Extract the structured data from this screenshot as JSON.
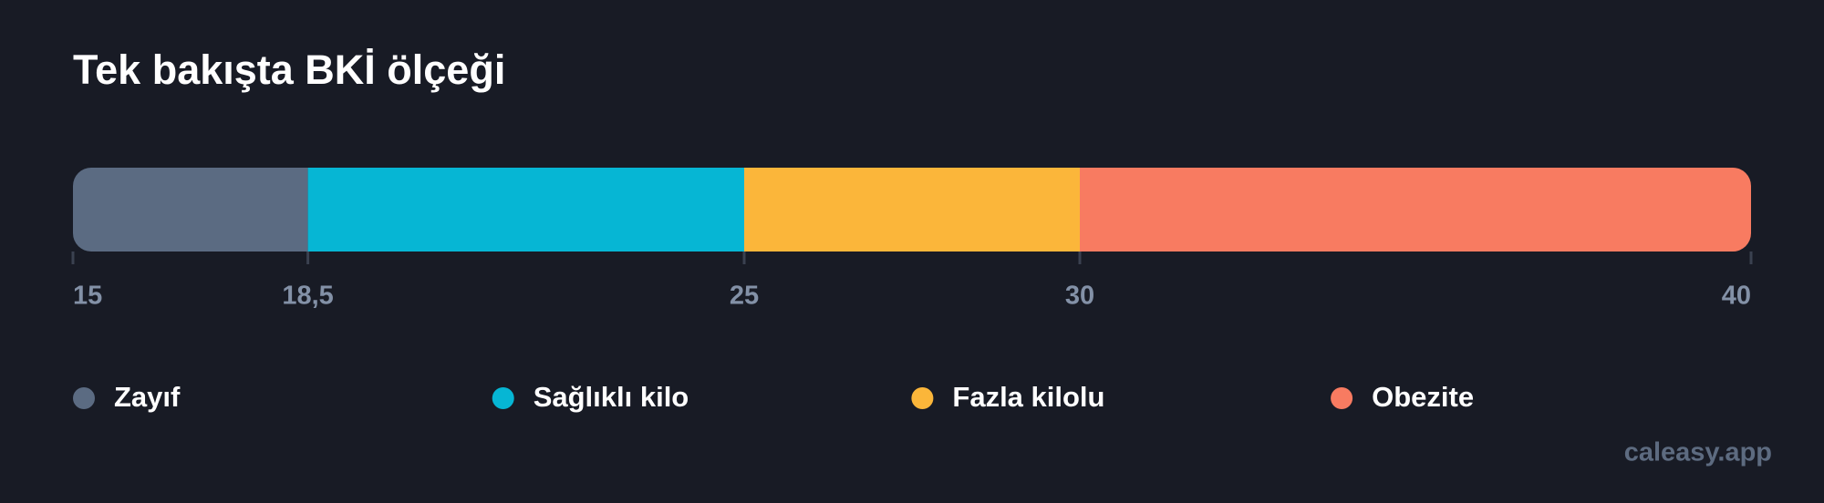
{
  "chart_data": {
    "type": "range-bar",
    "title": "Tek bakışta BKİ ölçeği",
    "xlim": [
      15,
      40
    ],
    "xticks": [
      15,
      {
        "value": 18.5,
        "label": "18,5"
      },
      25,
      30,
      40
    ],
    "series": [
      {
        "name": "Zayıf",
        "color": "#5b6b82",
        "range": [
          15,
          18.5
        ]
      },
      {
        "name": "Sağlıklı kilo",
        "color": "#06b6d4",
        "range": [
          18.5,
          25
        ]
      },
      {
        "name": "Fazla kilolu",
        "color": "#fbb63a",
        "range": [
          25,
          30
        ]
      },
      {
        "name": "Obezite",
        "color": "#f87b61",
        "range": [
          30,
          40
        ]
      }
    ]
  },
  "footer": {
    "watermark": "caleasy.app"
  }
}
